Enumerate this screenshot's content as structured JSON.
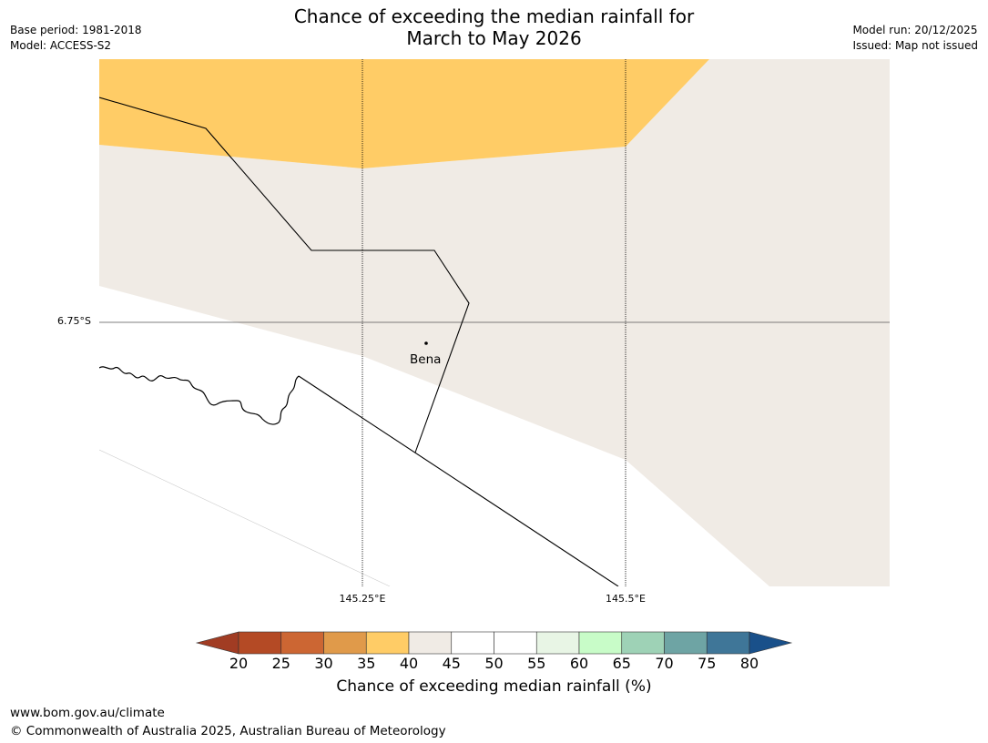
{
  "header": {
    "title_line1": "Chance of exceeding the median rainfall for",
    "title_line2": "March to May 2026",
    "base_period": "Base period: 1981-2018",
    "model": "Model: ACCESS-S2",
    "model_run": "Model run: 20/12/2025",
    "issued": "Issued: Map not issued"
  },
  "map": {
    "latitude_label": "6.75°S",
    "longitude_labels": [
      "145.25°E",
      "145.5°E"
    ],
    "place": {
      "name": "Bena"
    },
    "category_colors": {
      "35-40": "#ffcc66",
      "40-45": "#f0ebe5",
      "45-55": "#ffffff"
    }
  },
  "colorbar": {
    "label": "Chance of exceeding median rainfall (%)",
    "ticks": [
      "20",
      "25",
      "30",
      "35",
      "40",
      "45",
      "50",
      "55",
      "60",
      "65",
      "70",
      "75",
      "80"
    ],
    "colors": [
      "#a13c23",
      "#b44a25",
      "#cc6633",
      "#e09a4a",
      "#ffcc66",
      "#f0ebe5",
      "#ffffff",
      "#ffffff",
      "#e8f5e5",
      "#c8fcc8",
      "#9ed2b6",
      "#6ea4a4",
      "#3f7698",
      "#19508a"
    ]
  },
  "footer": {
    "url": "www.bom.gov.au/climate",
    "copyright": "© Commonwealth of Australia 2025, Australian Bureau of Meteorology"
  }
}
